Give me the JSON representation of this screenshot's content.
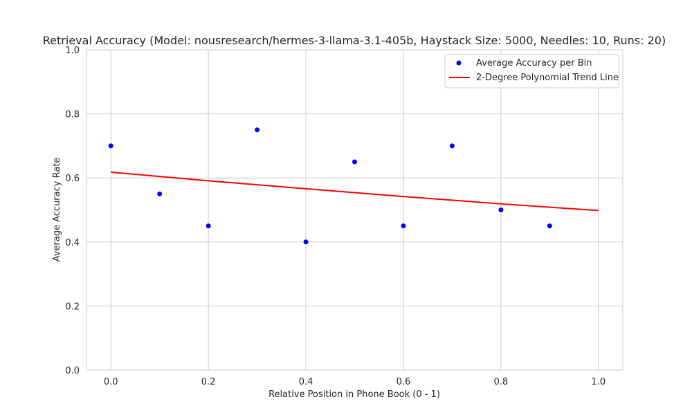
{
  "chart_data": {
    "type": "scatter",
    "title": "Retrieval Accuracy (Model: nousresearch/hermes-3-llama-3.1-405b, Haystack Size: 5000, Needles: 10, Runs: 20)",
    "xlabel": "Relative Position in Phone Book (0 - 1)",
    "ylabel": "Average Accuracy Rate",
    "xlim": [
      -0.05,
      1.05
    ],
    "ylim": [
      0.0,
      1.0
    ],
    "x_ticks": [
      0.0,
      0.2,
      0.4,
      0.6,
      0.8,
      1.0
    ],
    "x_tick_labels": [
      "0.0",
      "0.2",
      "0.4",
      "0.6",
      "0.8",
      "1.0"
    ],
    "y_ticks": [
      0.0,
      0.2,
      0.4,
      0.6,
      0.8,
      1.0
    ],
    "y_tick_labels": [
      "0.0",
      "0.2",
      "0.4",
      "0.6",
      "0.8",
      "1.0"
    ],
    "grid": true,
    "legend_position": "top-right",
    "series": [
      {
        "name": "Average Accuracy per Bin",
        "kind": "scatter",
        "color": "#0000ff",
        "x": [
          0.0,
          0.1,
          0.2,
          0.3,
          0.4,
          0.5,
          0.6,
          0.7,
          0.8,
          0.9
        ],
        "y": [
          0.7,
          0.55,
          0.45,
          0.75,
          0.4,
          0.65,
          0.45,
          0.7,
          0.5,
          0.45
        ]
      },
      {
        "name": "2-Degree Polynomial Trend Line",
        "kind": "line",
        "color": "#ff0000",
        "x": [
          0.0,
          0.2,
          0.4,
          0.6,
          0.8,
          1.0
        ],
        "y": [
          0.618,
          0.591,
          0.566,
          0.542,
          0.519,
          0.498
        ]
      }
    ]
  }
}
